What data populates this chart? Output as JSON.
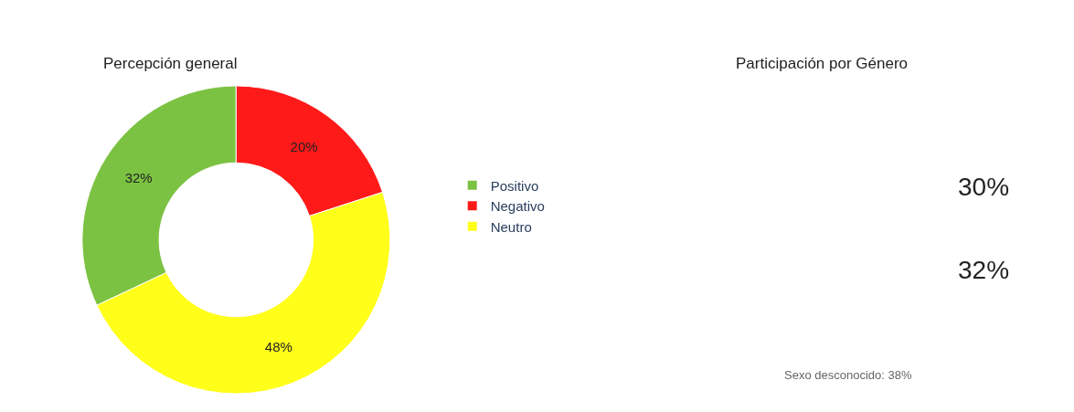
{
  "chart_data": [
    {
      "type": "donut",
      "title": "Percepción general",
      "categories": [
        "Positivo",
        "Negativo",
        "Neutro"
      ],
      "values": [
        32,
        20,
        48
      ],
      "colors": [
        "#7cc242",
        "#ff1a1a",
        "#ffff1a"
      ],
      "value_labels": [
        "32%",
        "20%",
        "48%"
      ],
      "legend": "right"
    },
    {
      "type": "other",
      "title": "Participación por Género",
      "annotations": [
        "30%",
        "32%",
        "Sexo desconocido: 38%"
      ]
    }
  ]
}
